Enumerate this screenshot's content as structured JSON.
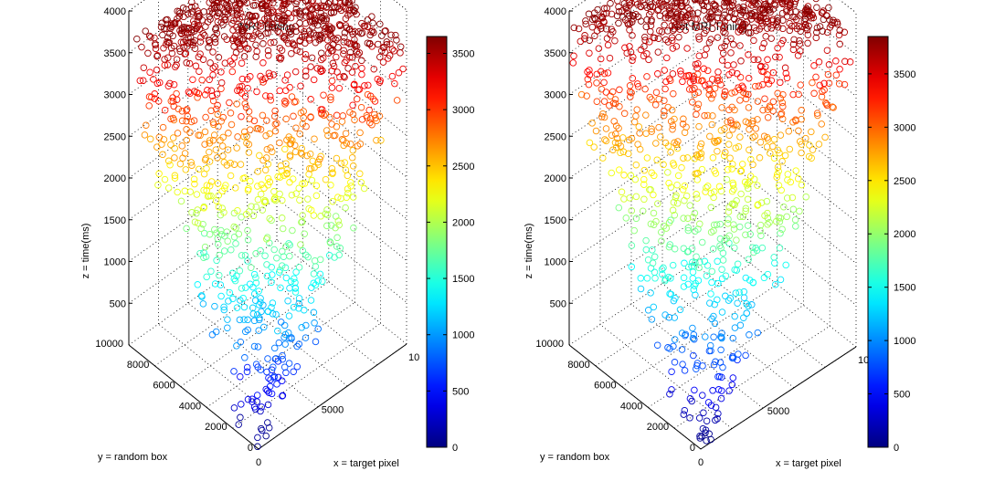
{
  "figure": {
    "background": "#ffffff"
  },
  "chart_data": [
    {
      "type": "scatter3d",
      "title": "MRI Timing",
      "xlabel": "x = target pixel",
      "ylabel": "y = random box",
      "zlabel": "z = time(ms)",
      "xlim": [
        0,
        10000
      ],
      "ylim": [
        0,
        10000
      ],
      "zlim": [
        0,
        4000
      ],
      "x_ticks": [
        "0",
        "5000",
        "10"
      ],
      "y_ticks": [
        "0",
        "2000",
        "4000",
        "6000",
        "8000",
        "10000"
      ],
      "z_ticks": [
        "500",
        "1000",
        "1500",
        "2000",
        "2500",
        "3000",
        "3500",
        "4000"
      ],
      "grid": true,
      "marker": "open-circle",
      "z_model": "z ≈ 0.36·(x + y) − ~180 ms, scatter ±300 ms, x,y uniform on 0–10000",
      "approx_points": 1500,
      "z_observed_max": 3650,
      "colorbar": {
        "colormap": "jet",
        "range": [
          0,
          3650
        ],
        "ticks": [
          0,
          500,
          1000,
          1500,
          2000,
          2500,
          3000,
          3500
        ]
      }
    },
    {
      "type": "scatter3d",
      "title": "Not MRI Timing",
      "xlabel": "x = target pixel",
      "ylabel": "y = random box",
      "zlabel": "z = time(ms)",
      "xlim": [
        0,
        10000
      ],
      "ylim": [
        0,
        10000
      ],
      "zlim": [
        0,
        4000
      ],
      "x_ticks": [
        "0",
        "5000",
        "10"
      ],
      "y_ticks": [
        "0",
        "2000",
        "4000",
        "6000",
        "8000",
        "10000"
      ],
      "z_ticks": [
        "500",
        "1000",
        "1500",
        "2000",
        "2500",
        "3000",
        "3500",
        "4000"
      ],
      "grid": true,
      "marker": "open-circle",
      "z_model": "z ≈ 0.38·(x + y) − ~190 ms, scatter ±320 ms, x,y uniform on 0–10000",
      "approx_points": 1500,
      "z_observed_max": 3850,
      "colorbar": {
        "colormap": "jet",
        "range": [
          0,
          3850
        ],
        "ticks": [
          0,
          500,
          1000,
          1500,
          2000,
          2500,
          3000,
          3500
        ]
      }
    }
  ]
}
